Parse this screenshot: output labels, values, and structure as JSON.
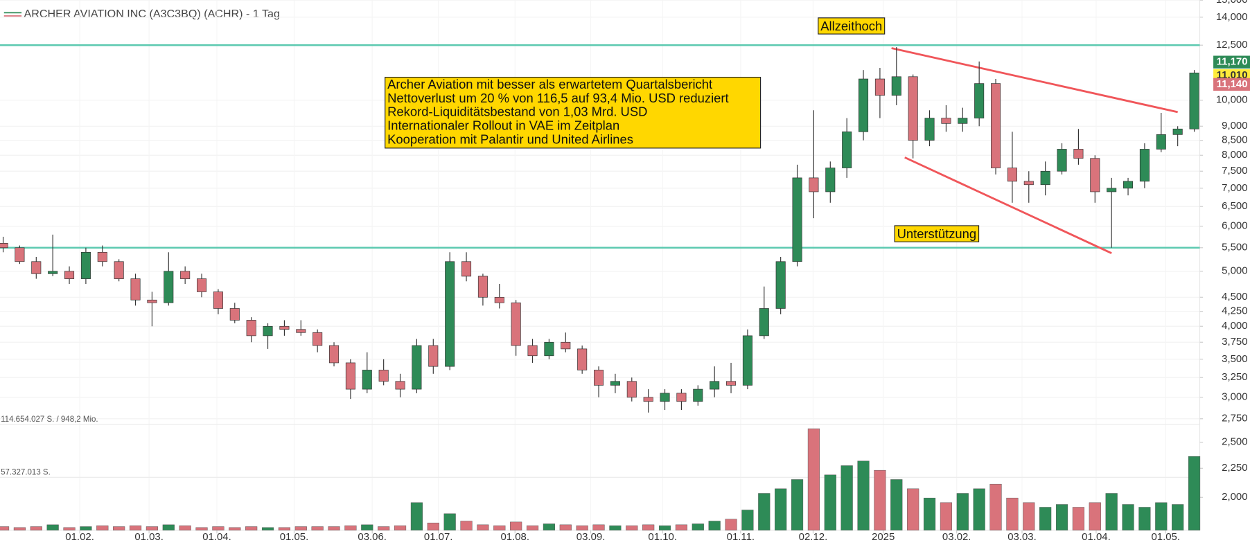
{
  "chart_data": {
    "type": "candlestick",
    "title": "ARCHER AVIATION INC (A3C3BQ) (ACHR) - 1 Tag",
    "log_scale": true,
    "grid": true,
    "up_color": "#2e8b57",
    "down_color": "#d9737b",
    "open": [
      5.6,
      5.5,
      5.2,
      4.95,
      5.0,
      4.85,
      5.4,
      5.2,
      4.85,
      4.45,
      4.4,
      5.0,
      4.85,
      4.6,
      4.3,
      4.1,
      3.85,
      4.0,
      3.95,
      3.9,
      3.7,
      3.45,
      3.1,
      3.35,
      3.2,
      3.1,
      3.7,
      3.4,
      5.2,
      4.9,
      4.5,
      4.4,
      3.7,
      3.55,
      3.75,
      3.65,
      3.35,
      3.15,
      3.2,
      3.0,
      2.95,
      3.05,
      2.95,
      3.1,
      3.2,
      3.15,
      3.85,
      4.3,
      5.2,
      7.3,
      6.9,
      7.6,
      8.8,
      10.9,
      10.2,
      11.0,
      8.5,
      9.3,
      9.1,
      9.3,
      10.7,
      7.6,
      7.2,
      7.1,
      7.5,
      8.2,
      7.9,
      6.9,
      7.0,
      7.2,
      8.2,
      8.7,
      8.9
    ],
    "high": [
      5.75,
      5.55,
      5.3,
      5.8,
      5.1,
      5.5,
      5.55,
      5.25,
      4.95,
      4.6,
      5.4,
      5.1,
      4.95,
      4.65,
      4.4,
      4.15,
      4.05,
      4.1,
      4.1,
      3.95,
      3.75,
      3.5,
      3.6,
      3.5,
      3.3,
      3.8,
      3.8,
      5.4,
      5.4,
      4.95,
      4.75,
      4.45,
      3.8,
      3.8,
      3.9,
      3.7,
      3.4,
      3.3,
      3.25,
      3.1,
      3.1,
      3.1,
      3.15,
      3.4,
      3.45,
      3.95,
      4.7,
      5.3,
      7.7,
      9.6,
      7.8,
      9.3,
      11.3,
      11.4,
      12.4,
      11.1,
      9.6,
      9.8,
      9.7,
      11.7,
      10.9,
      8.8,
      7.5,
      7.8,
      8.4,
      8.9,
      8.0,
      7.3,
      7.3,
      8.4,
      9.5,
      9.0,
      11.3
    ],
    "low": [
      5.4,
      5.15,
      4.85,
      4.9,
      4.75,
      4.75,
      5.1,
      4.8,
      4.35,
      4.0,
      4.35,
      4.75,
      4.5,
      4.2,
      4.05,
      3.75,
      3.65,
      3.85,
      3.85,
      3.6,
      3.4,
      2.98,
      3.05,
      3.15,
      3.0,
      3.05,
      3.3,
      3.35,
      4.8,
      4.35,
      4.3,
      3.55,
      3.45,
      3.5,
      3.6,
      3.3,
      3.0,
      3.05,
      2.95,
      2.82,
      2.85,
      2.85,
      2.9,
      3.0,
      3.05,
      3.1,
      3.8,
      4.2,
      5.1,
      6.2,
      6.6,
      7.3,
      8.5,
      9.3,
      9.8,
      7.9,
      8.3,
      8.8,
      8.8,
      9.0,
      7.4,
      6.6,
      6.6,
      6.8,
      7.4,
      7.7,
      6.6,
      5.5,
      6.8,
      7.0,
      8.1,
      8.3,
      8.8
    ],
    "close": [
      5.5,
      5.2,
      4.95,
      5.0,
      4.85,
      5.4,
      5.2,
      4.85,
      4.45,
      4.4,
      5.0,
      4.85,
      4.6,
      4.3,
      4.1,
      3.85,
      4.0,
      3.95,
      3.9,
      3.7,
      3.45,
      3.1,
      3.35,
      3.2,
      3.1,
      3.7,
      3.4,
      5.2,
      4.9,
      4.5,
      4.4,
      3.7,
      3.55,
      3.75,
      3.65,
      3.35,
      3.15,
      3.2,
      3.0,
      2.95,
      3.05,
      2.95,
      3.1,
      3.2,
      3.15,
      3.85,
      4.3,
      5.2,
      7.3,
      6.9,
      7.6,
      8.8,
      10.9,
      10.2,
      11.0,
      8.5,
      9.3,
      9.1,
      9.3,
      10.7,
      7.6,
      7.2,
      7.1,
      7.5,
      8.2,
      7.9,
      6.9,
      7.0,
      7.2,
      8.2,
      8.7,
      8.9,
      11.17
    ],
    "volume": [
      4000000,
      3000000,
      4000000,
      6000000,
      3000000,
      4000000,
      5000000,
      4000000,
      5000000,
      4000000,
      6000000,
      5000000,
      3000000,
      4000000,
      3000000,
      4000000,
      3000000,
      3000000,
      4000000,
      4000000,
      4000000,
      5000000,
      6000000,
      4000000,
      5000000,
      30000000,
      8000000,
      18000000,
      10000000,
      6000000,
      5000000,
      9000000,
      5000000,
      7000000,
      6000000,
      5000000,
      6000000,
      5000000,
      5000000,
      6000000,
      5000000,
      6000000,
      7000000,
      10000000,
      12000000,
      22000000,
      40000000,
      45000000,
      55000000,
      110000000,
      60000000,
      70000000,
      75000000,
      65000000,
      55000000,
      45000000,
      35000000,
      30000000,
      40000000,
      45000000,
      50000000,
      35000000,
      30000000,
      25000000,
      28000000,
      25000000,
      30000000,
      40000000,
      28000000,
      25000000,
      30000000,
      28000000,
      80000000
    ],
    "ylim": [
      1.75,
      15.01
    ],
    "yticks": [
      {
        "value": 15,
        "label": "15,000"
      },
      {
        "value": 14,
        "label": "14,000"
      },
      {
        "value": 12.5,
        "label": "12,500"
      },
      {
        "value": 10,
        "label": "10,000"
      },
      {
        "value": 9,
        "label": "9,000"
      },
      {
        "value": 8.5,
        "label": "8,500"
      },
      {
        "value": 8,
        "label": "8,000"
      },
      {
        "value": 7.5,
        "label": "7,500"
      },
      {
        "value": 7,
        "label": "7,000"
      },
      {
        "value": 6.5,
        "label": "6,500"
      },
      {
        "value": 6,
        "label": "6,000"
      },
      {
        "value": 5.5,
        "label": "5,500"
      },
      {
        "value": 5,
        "label": "5,000"
      },
      {
        "value": 4.5,
        "label": "4,500"
      },
      {
        "value": 4.25,
        "label": "4,250"
      },
      {
        "value": 4,
        "label": "4,000"
      },
      {
        "value": 3.75,
        "label": "3,750"
      },
      {
        "value": 3.5,
        "label": "3,500"
      },
      {
        "value": 3.25,
        "label": "3,250"
      },
      {
        "value": 3,
        "label": "3,000"
      },
      {
        "value": 2.75,
        "label": "2,750"
      },
      {
        "value": 2.5,
        "label": "2,500"
      },
      {
        "value": 2.25,
        "label": "2,250"
      },
      {
        "value": 2,
        "label": "2,000"
      }
    ],
    "xlim": [
      -0.19,
      75.37
    ],
    "xticks": [
      {
        "value": 4.63,
        "label": "01.02."
      },
      {
        "value": 8.82,
        "label": "01.03."
      },
      {
        "value": 12.92,
        "label": "01.04."
      },
      {
        "value": 17.59,
        "label": "01.05."
      },
      {
        "value": 22.31,
        "label": "03.06."
      },
      {
        "value": 26.31,
        "label": "01.07."
      },
      {
        "value": 30.94,
        "label": "01.08."
      },
      {
        "value": 35.52,
        "label": "03.09."
      },
      {
        "value": 39.86,
        "label": "01.10."
      },
      {
        "value": 44.58,
        "label": "01.11."
      },
      {
        "value": 48.96,
        "label": "02.12."
      },
      {
        "value": 53.2,
        "label": "2025"
      },
      {
        "value": 57.64,
        "label": "03.02."
      },
      {
        "value": 61.59,
        "label": "03.03."
      },
      {
        "value": 66.07,
        "label": "01.04."
      },
      {
        "value": 70.27,
        "label": "01.05."
      }
    ],
    "vlim": [
      0,
      114654027
    ],
    "vticks": [
      {
        "value": 114654027,
        "label": "114.654.027 S. / 948,2 Mio."
      },
      {
        "value": 57327013,
        "label": "57.327.013 S."
      }
    ],
    "levels": [
      {
        "value": 12.5,
        "label": "Allzeithoch",
        "color": "#5cc9b0"
      },
      {
        "value": 5.5,
        "label": "Unterstützung",
        "color": "#5cc9b0"
      }
    ],
    "trendlines": [
      {
        "color": "#f0565a",
        "x": [
          53.7,
          71.0
        ],
        "y": [
          12.35,
          9.53
        ]
      },
      {
        "color": "#f0565a",
        "x": [
          54.5,
          67.0
        ],
        "y": [
          7.93,
          5.38
        ]
      }
    ],
    "price_tags": [
      {
        "value": 11.17,
        "label": "11,170",
        "color": "#2e8b57"
      },
      {
        "value": 11.01,
        "label": "11,010",
        "color": "#ffeb3b"
      },
      {
        "value": 11.14,
        "label": "11,140",
        "color": "#d9737b"
      }
    ],
    "annotation": [
      "Archer Aviation mit besser als erwartetem Quartalsbericht",
      "Nettoverlust um 20 % von 116,5 auf 93,4 Mio. USD reduziert",
      "Rekord-Liquiditätsbestand von 1,03 Mrd. USD",
      "Internationaler Rollout in VAE im Zeitplan",
      "Kooperation mit Palantir und United Airlines"
    ]
  }
}
